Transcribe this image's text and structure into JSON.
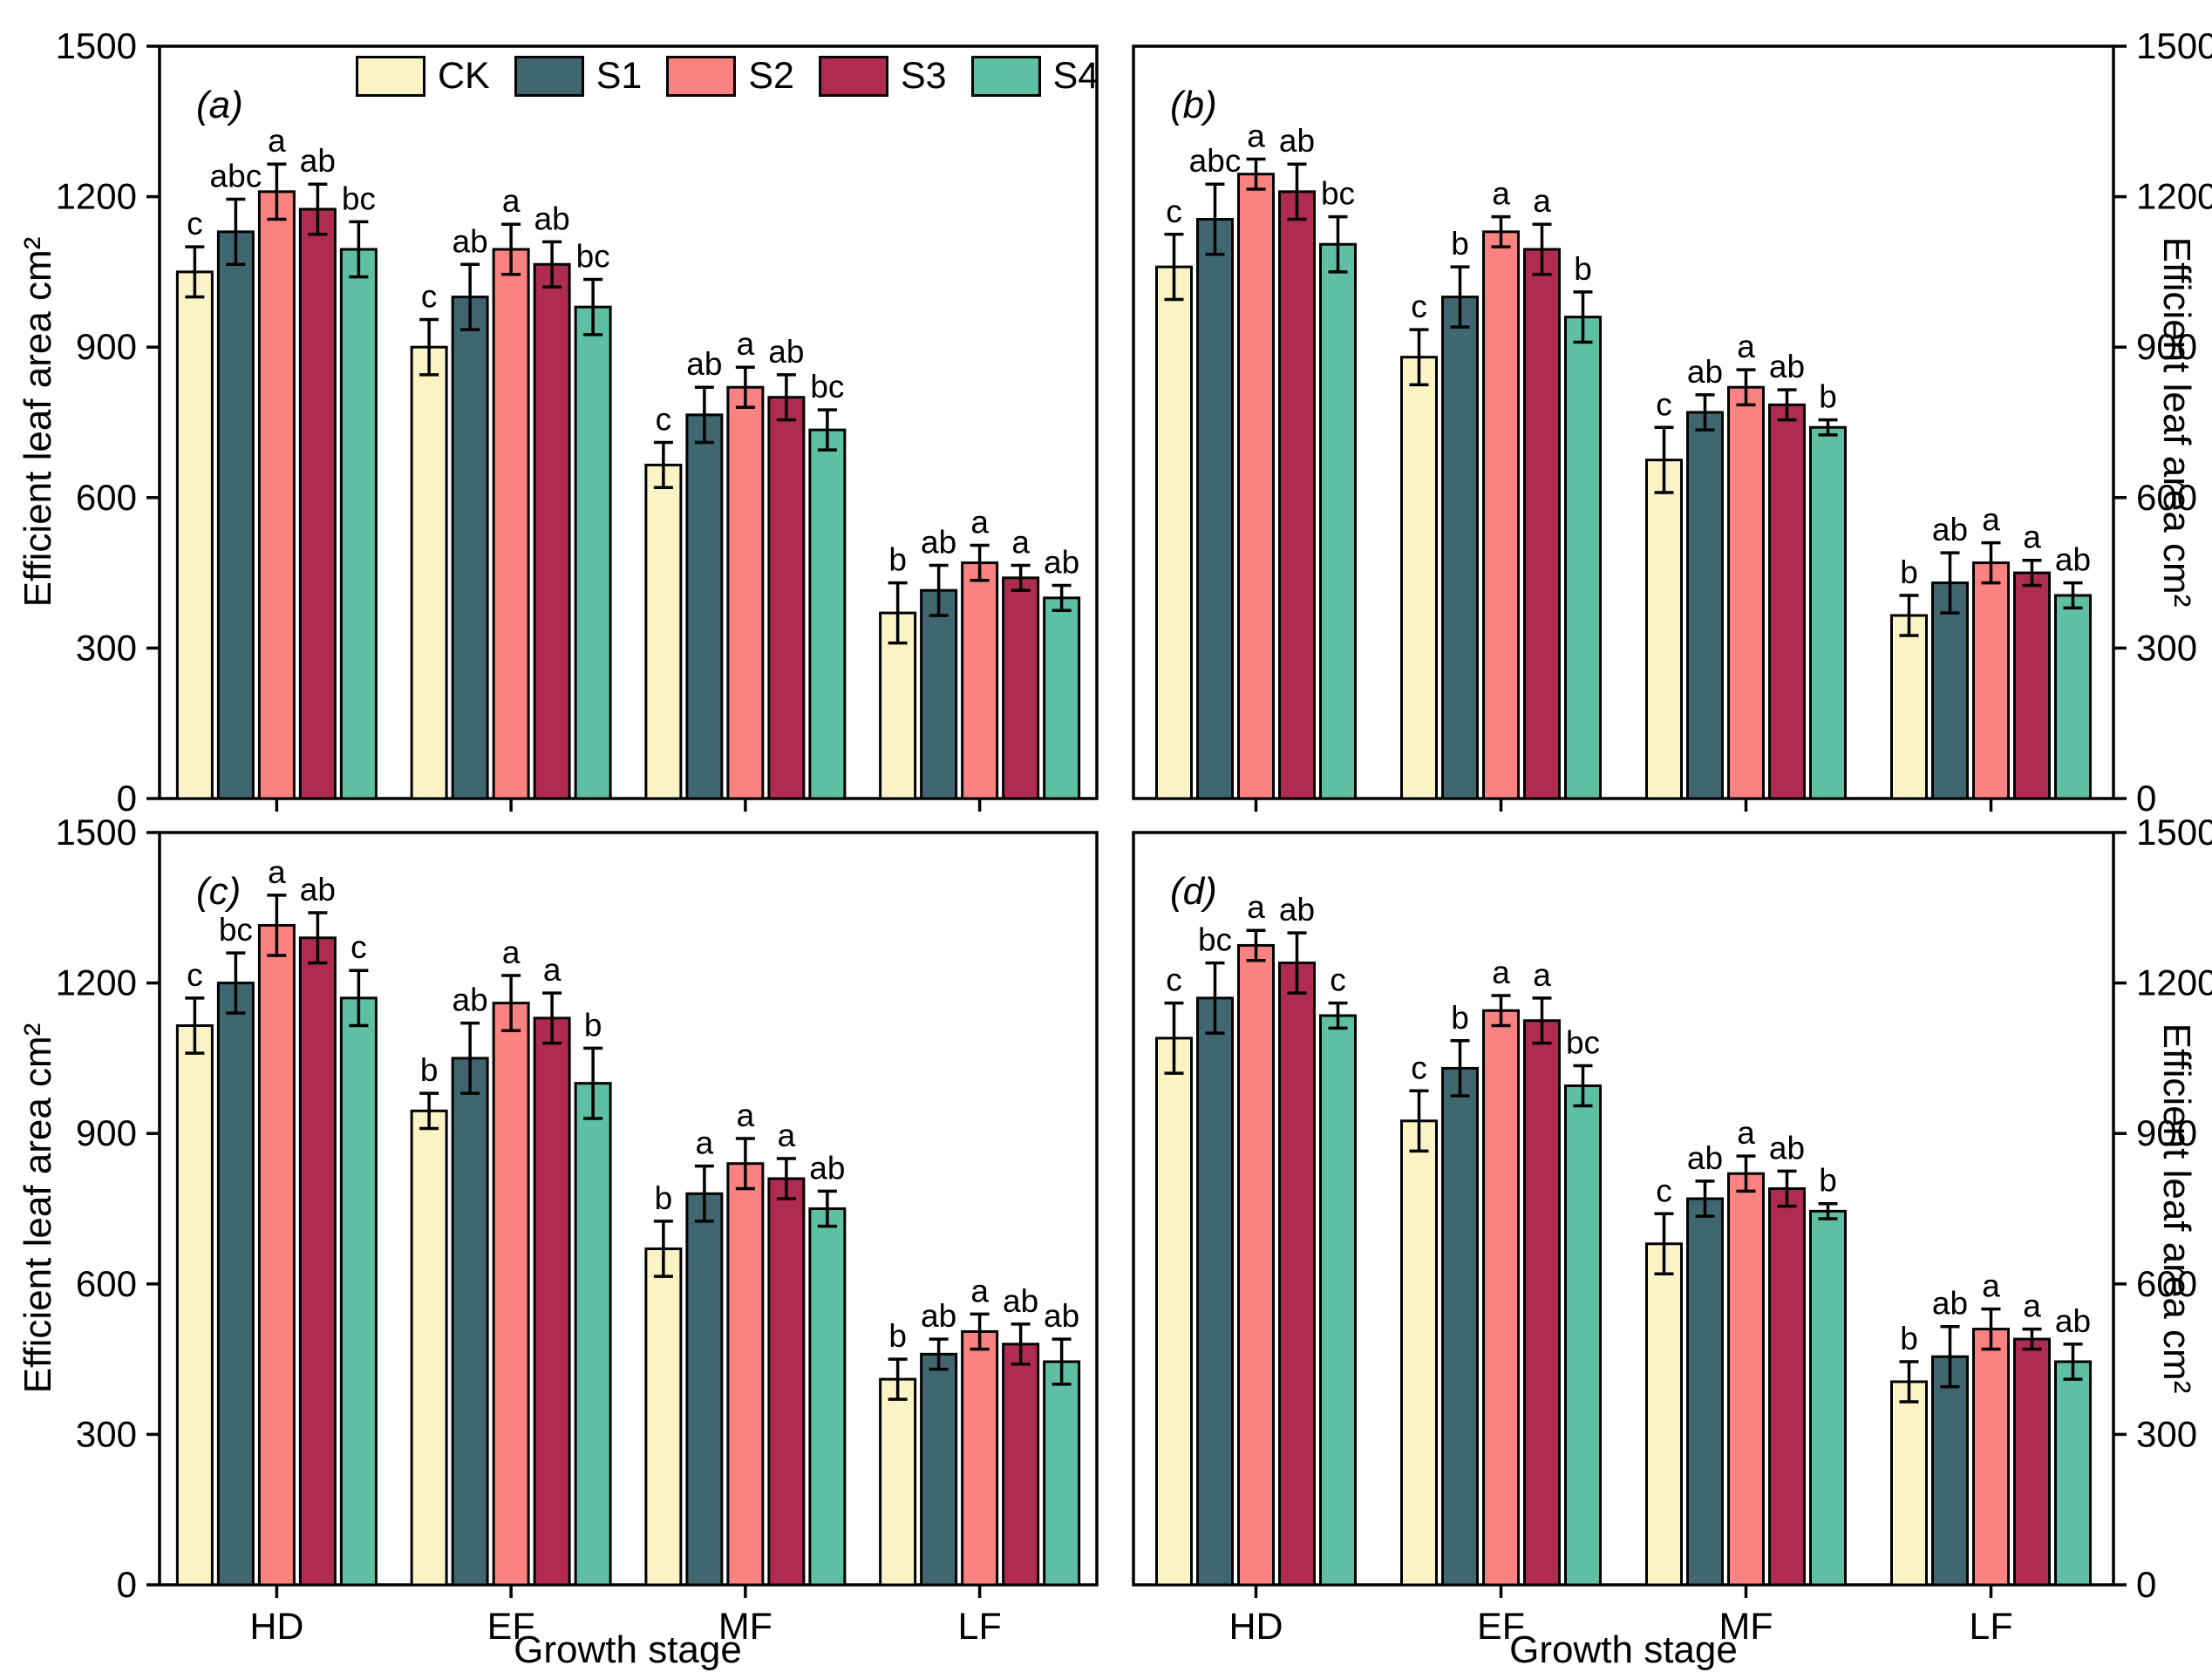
{
  "figure": {
    "ylabel": "Efficient leaf area cm²",
    "xlabel": "Growth stage",
    "background": "#ffffff",
    "axis_color": "#000000",
    "legend": {
      "position": "top-inside-panel-a",
      "labels": [
        "CK",
        "S1",
        "S2",
        "S3",
        "S4"
      ]
    },
    "colors": {
      "CK": "#FAF3C6",
      "S1": "#40676F",
      "S2": "#FA8280",
      "S3": "#B02B52",
      "S4": "#5FBFA2"
    }
  },
  "chart_data": [
    {
      "type": "bar",
      "panel_label": "(a)",
      "categories": [
        "HD",
        "EF",
        "MF",
        "LF"
      ],
      "ylim": [
        0,
        1500
      ],
      "yticks": [
        0,
        300,
        600,
        900,
        1200,
        1500
      ],
      "grid": false,
      "series": [
        {
          "name": "CK",
          "color": "#FAF3C6",
          "values": [
            1050,
            900,
            665,
            370
          ],
          "errors": [
            50,
            55,
            45,
            60
          ],
          "letters": [
            "c",
            "c",
            "c",
            "b"
          ]
        },
        {
          "name": "S1",
          "color": "#40676F",
          "values": [
            1130,
            1000,
            765,
            415
          ],
          "errors": [
            65,
            65,
            55,
            50
          ],
          "letters": [
            "abc",
            "ab",
            "ab",
            "ab"
          ]
        },
        {
          "name": "S2",
          "color": "#FA8280",
          "values": [
            1210,
            1095,
            820,
            470
          ],
          "errors": [
            55,
            50,
            40,
            35
          ],
          "letters": [
            "a",
            "a",
            "a",
            "a"
          ]
        },
        {
          "name": "S3",
          "color": "#B02B52",
          "values": [
            1175,
            1065,
            800,
            440
          ],
          "errors": [
            50,
            45,
            45,
            25
          ],
          "letters": [
            "ab",
            "ab",
            "ab",
            "a"
          ]
        },
        {
          "name": "S4",
          "color": "#5FBFA2",
          "values": [
            1095,
            980,
            735,
            400
          ],
          "errors": [
            55,
            55,
            40,
            25
          ],
          "letters": [
            "bc",
            "bc",
            "bc",
            "ab"
          ]
        }
      ]
    },
    {
      "type": "bar",
      "panel_label": "(b)",
      "categories": [
        "HD",
        "EF",
        "MF",
        "LF"
      ],
      "ylim": [
        0,
        1500
      ],
      "yticks": [
        0,
        300,
        600,
        900,
        1200,
        1500
      ],
      "grid": false,
      "series": [
        {
          "name": "CK",
          "color": "#FAF3C6",
          "values": [
            1060,
            880,
            675,
            365
          ],
          "errors": [
            65,
            55,
            65,
            40
          ],
          "letters": [
            "c",
            "c",
            "c",
            "b"
          ]
        },
        {
          "name": "S1",
          "color": "#40676F",
          "values": [
            1155,
            1000,
            770,
            430
          ],
          "errors": [
            70,
            60,
            35,
            60
          ],
          "letters": [
            "abc",
            "b",
            "ab",
            "ab"
          ]
        },
        {
          "name": "S2",
          "color": "#FA8280",
          "values": [
            1245,
            1130,
            820,
            470
          ],
          "errors": [
            30,
            30,
            35,
            40
          ],
          "letters": [
            "a",
            "a",
            "a",
            "a"
          ]
        },
        {
          "name": "S3",
          "color": "#B02B52",
          "values": [
            1210,
            1095,
            785,
            450
          ],
          "errors": [
            55,
            50,
            30,
            25
          ],
          "letters": [
            "ab",
            "a",
            "ab",
            "a"
          ]
        },
        {
          "name": "S4",
          "color": "#5FBFA2",
          "values": [
            1105,
            960,
            740,
            405
          ],
          "errors": [
            55,
            50,
            15,
            25
          ],
          "letters": [
            "bc",
            "b",
            "b",
            "ab"
          ]
        }
      ]
    },
    {
      "type": "bar",
      "panel_label": "(c)",
      "categories": [
        "HD",
        "EF",
        "MF",
        "LF"
      ],
      "ylim": [
        0,
        1500
      ],
      "yticks": [
        0,
        300,
        600,
        900,
        1200,
        1500
      ],
      "grid": false,
      "series": [
        {
          "name": "CK",
          "color": "#FAF3C6",
          "values": [
            1115,
            945,
            670,
            410
          ],
          "errors": [
            55,
            35,
            55,
            40
          ],
          "letters": [
            "c",
            "b",
            "b",
            "b"
          ]
        },
        {
          "name": "S1",
          "color": "#40676F",
          "values": [
            1200,
            1050,
            780,
            460
          ],
          "errors": [
            60,
            70,
            55,
            30
          ],
          "letters": [
            "bc",
            "ab",
            "a",
            "ab"
          ]
        },
        {
          "name": "S2",
          "color": "#FA8280",
          "values": [
            1315,
            1160,
            840,
            505
          ],
          "errors": [
            60,
            55,
            50,
            35
          ],
          "letters": [
            "a",
            "a",
            "a",
            "a"
          ]
        },
        {
          "name": "S3",
          "color": "#B02B52",
          "values": [
            1290,
            1130,
            810,
            480
          ],
          "errors": [
            50,
            50,
            40,
            40
          ],
          "letters": [
            "ab",
            "a",
            "a",
            "ab"
          ]
        },
        {
          "name": "S4",
          "color": "#5FBFA2",
          "values": [
            1170,
            1000,
            750,
            445
          ],
          "errors": [
            55,
            70,
            35,
            45
          ],
          "letters": [
            "c",
            "b",
            "ab",
            "ab"
          ]
        }
      ]
    },
    {
      "type": "bar",
      "panel_label": "(d)",
      "categories": [
        "HD",
        "EF",
        "MF",
        "LF"
      ],
      "ylim": [
        0,
        1500
      ],
      "yticks": [
        0,
        300,
        600,
        900,
        1200,
        1500
      ],
      "grid": false,
      "series": [
        {
          "name": "CK",
          "color": "#FAF3C6",
          "values": [
            1090,
            925,
            680,
            405
          ],
          "errors": [
            70,
            60,
            60,
            40
          ],
          "letters": [
            "c",
            "c",
            "c",
            "b"
          ]
        },
        {
          "name": "S1",
          "color": "#40676F",
          "values": [
            1170,
            1030,
            770,
            455
          ],
          "errors": [
            70,
            55,
            35,
            60
          ],
          "letters": [
            "bc",
            "b",
            "ab",
            "ab"
          ]
        },
        {
          "name": "S2",
          "color": "#FA8280",
          "values": [
            1275,
            1145,
            820,
            510
          ],
          "errors": [
            30,
            30,
            35,
            40
          ],
          "letters": [
            "a",
            "a",
            "a",
            "a"
          ]
        },
        {
          "name": "S3",
          "color": "#B02B52",
          "values": [
            1240,
            1125,
            790,
            490
          ],
          "errors": [
            60,
            45,
            35,
            20
          ],
          "letters": [
            "ab",
            "a",
            "ab",
            "a"
          ]
        },
        {
          "name": "S4",
          "color": "#5FBFA2",
          "values": [
            1135,
            995,
            745,
            445
          ],
          "errors": [
            25,
            40,
            15,
            35
          ],
          "letters": [
            "c",
            "bc",
            "b",
            "ab"
          ]
        }
      ]
    }
  ]
}
